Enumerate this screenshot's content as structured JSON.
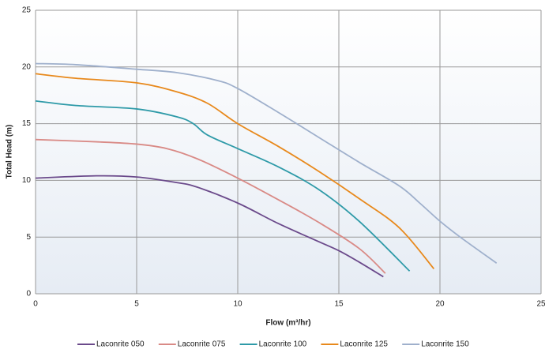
{
  "chart_data": {
    "type": "line",
    "xlabel": "Flow  (m³/hr)",
    "ylabel": "Total Head (m)",
    "xlim": [
      0,
      25
    ],
    "xticks": [
      0,
      5,
      10,
      15,
      20,
      25
    ],
    "ylim": [
      0,
      25
    ],
    "yticks": [
      0,
      5,
      10,
      15,
      20,
      25
    ],
    "grid": true,
    "legend": "bottom",
    "series": [
      {
        "name": "Laconrite 050",
        "color": "#6b4a8b",
        "x": [
          0,
          3,
          5,
          7,
          8,
          10,
          12,
          14,
          15,
          16,
          17.2
        ],
        "values": [
          10.2,
          10.4,
          10.3,
          9.8,
          9.4,
          8.0,
          6.2,
          4.6,
          3.8,
          2.8,
          1.5
        ]
      },
      {
        "name": "Laconrite 075",
        "color": "#d98a86",
        "x": [
          0,
          3,
          5,
          6.5,
          8,
          10,
          12,
          14,
          16,
          17.3
        ],
        "values": [
          13.6,
          13.4,
          13.2,
          12.8,
          11.9,
          10.2,
          8.3,
          6.3,
          4.0,
          1.8
        ]
      },
      {
        "name": "Laconrite 100",
        "color": "#2e9aa8",
        "x": [
          0,
          2,
          5,
          7,
          7.8,
          8.5,
          10,
          12,
          14,
          16,
          18.5
        ],
        "values": [
          17.0,
          16.6,
          16.3,
          15.6,
          15.0,
          14.0,
          12.8,
          11.2,
          9.2,
          6.4,
          2.0
        ]
      },
      {
        "name": "Laconrite 125",
        "color": "#e8891c",
        "x": [
          0,
          2,
          5,
          7,
          8.5,
          10,
          12,
          14,
          16,
          18,
          19.7
        ],
        "values": [
          19.4,
          19.0,
          18.6,
          17.8,
          16.8,
          15.0,
          13.0,
          10.8,
          8.4,
          5.8,
          2.2
        ]
      },
      {
        "name": "Laconrite 150",
        "color": "#9fb0cc",
        "x": [
          0,
          2,
          5,
          7,
          9,
          10,
          12,
          14,
          16,
          18,
          19,
          20,
          21,
          22.8
        ],
        "values": [
          20.3,
          20.2,
          19.8,
          19.5,
          18.8,
          18.1,
          16.0,
          13.8,
          11.6,
          9.5,
          8.0,
          6.4,
          5.0,
          2.7
        ]
      }
    ]
  }
}
